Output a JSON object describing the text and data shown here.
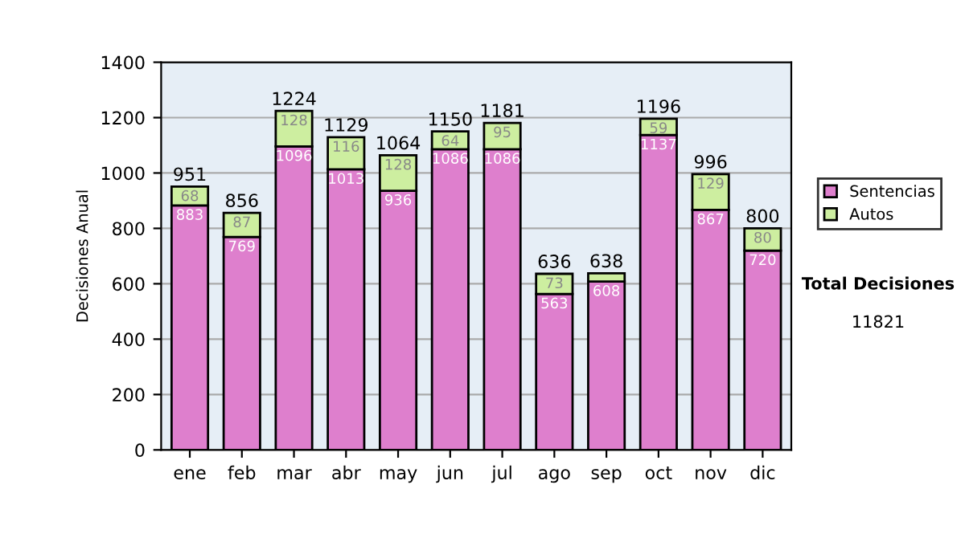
{
  "chart_data": {
    "type": "bar",
    "stacked": true,
    "ylabel": "Decisiones Anual",
    "categories": [
      "ene",
      "feb",
      "mar",
      "abr",
      "may",
      "jun",
      "jul",
      "ago",
      "sep",
      "oct",
      "nov",
      "dic"
    ],
    "series": [
      {
        "name": "Sentencias",
        "color": "#de7fcd",
        "values": [
          883,
          769,
          1096,
          1013,
          936,
          1086,
          1086,
          563,
          608,
          1137,
          867,
          720
        ],
        "value_labels": [
          "883",
          "769",
          "1096",
          "1013",
          "936",
          "1086",
          "1086",
          "563",
          "608",
          "1137",
          "867",
          "720"
        ]
      },
      {
        "name": "Autos",
        "color": "#cdeea0",
        "values": [
          68,
          87,
          128,
          116,
          128,
          64,
          95,
          73,
          30,
          59,
          129,
          80
        ],
        "value_labels": [
          "68",
          "87",
          "128",
          "116",
          "128",
          "64",
          "95",
          "73",
          null,
          "59",
          "129",
          "80"
        ]
      }
    ],
    "totals": [
      "951",
      "856",
      "1224",
      "1129",
      "1064",
      "1150",
      "1181",
      "636",
      "638",
      "1196",
      "996",
      "800"
    ],
    "ylim": [
      0,
      1400
    ],
    "yticks": [
      0,
      200,
      400,
      600,
      800,
      1000,
      1200,
      1400
    ],
    "grid": "y",
    "legend": "right",
    "annotations": [
      "Total Decisiones",
      "11821"
    ]
  }
}
